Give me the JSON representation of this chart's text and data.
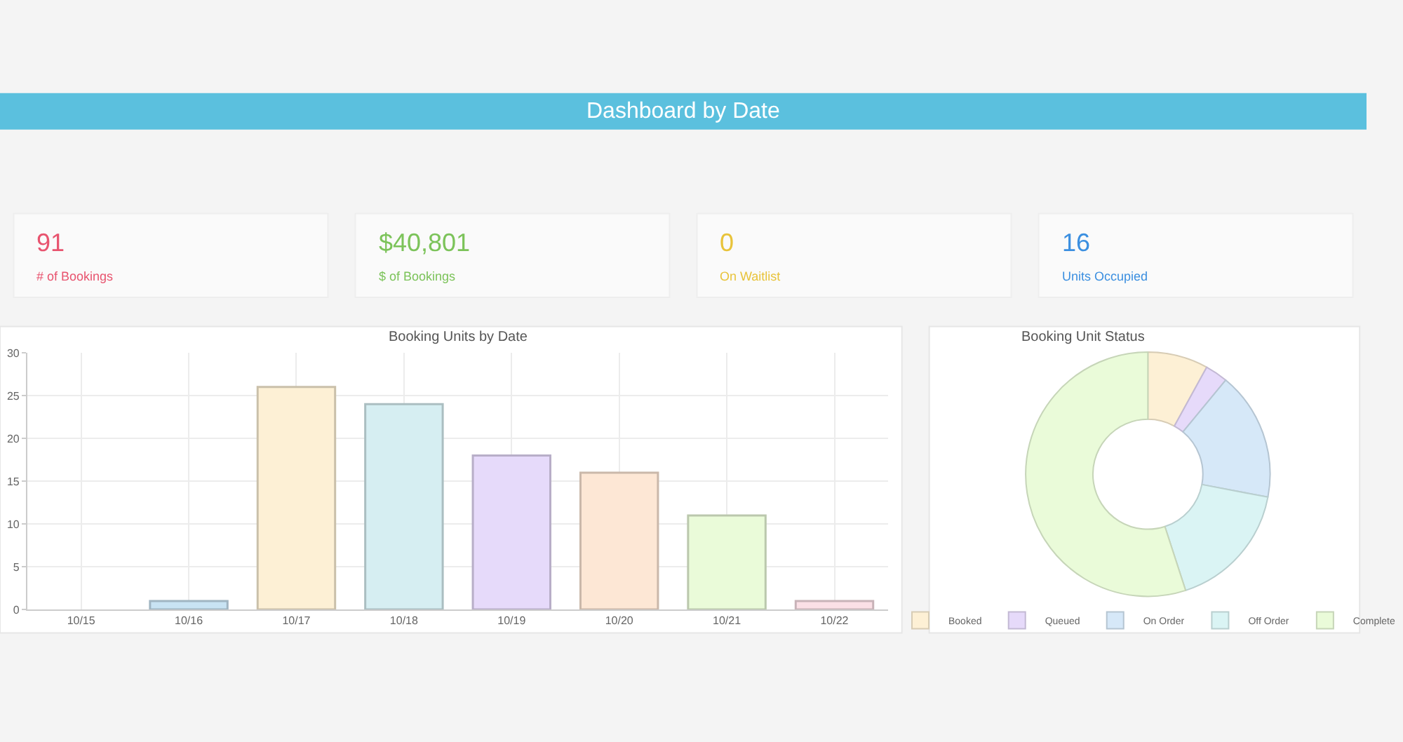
{
  "chart_data": [
    {
      "type": "other",
      "title": "Dashboard by Date",
      "annotations": [
        "91",
        "# of Bookings",
        "$40,801",
        "$ of Bookings",
        "0",
        "On Waitlist",
        "16",
        "Units Occupied"
      ],
      "colors": [
        "#e8546f",
        "#7cc35a",
        "#e8c33a",
        "#3b8fe0"
      ]
    },
    {
      "type": "bar",
      "title": "Booking Units by Date",
      "categories": [
        "10/15",
        "10/16",
        "10/17",
        "10/18",
        "10/19",
        "10/20",
        "10/21",
        "10/22"
      ],
      "values": [
        0,
        1,
        26,
        24,
        18,
        16,
        11,
        1
      ],
      "colors": [
        "#fbe0e6",
        "#c8e3f3",
        "#fdf0d5",
        "#d6eef2",
        "#e6dafa",
        "#fde7d5",
        "#eafbd9",
        "#fbe0e6"
      ],
      "ylim": [
        0,
        30
      ],
      "yticks": [
        0,
        5,
        10,
        15,
        20,
        25,
        30
      ],
      "grid": true,
      "legend": false
    },
    {
      "type": "donut",
      "title": "Booking Unit Status",
      "categories": [
        "Booked",
        "Queued",
        "On Order",
        "Off Order",
        "Complete"
      ],
      "values": [
        8,
        3,
        17,
        17,
        55
      ],
      "colors": [
        "#fdf0d5",
        "#e6dafa",
        "#d6e8f8",
        "#daf4f4",
        "#eafbd9"
      ],
      "legend": "bottom"
    }
  ]
}
